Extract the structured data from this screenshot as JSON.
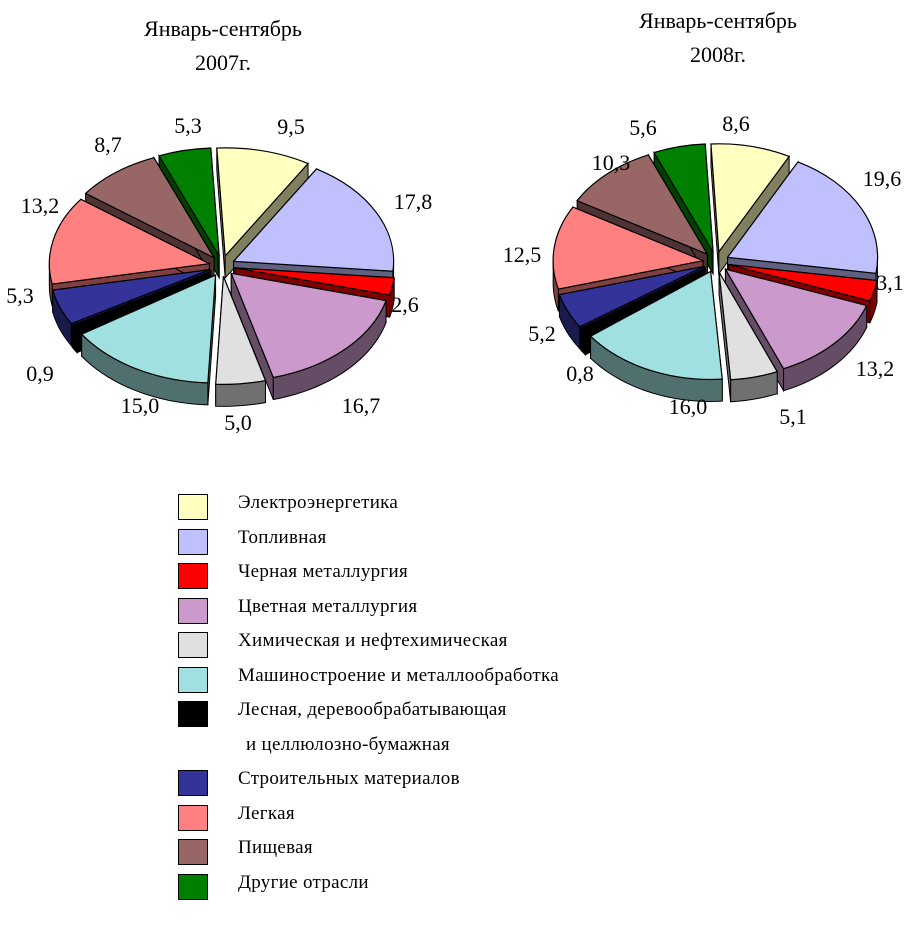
{
  "chart_data": [
    {
      "type": "pie",
      "title_line1": "Январь-сентябрь",
      "title_line2": "2007г.",
      "categories": [
        "Электроэнергетика",
        "Топливная",
        "Черная металлургия",
        "Цветная металлургия",
        "Химическая и нефтехимическая",
        "Машиностроение и металлообработка",
        "Лесная, деревообрабатывающая и целлюлозно-бумажная",
        "Строительных материалов",
        "Легкая",
        "Пищевая",
        "Другие отрасли"
      ],
      "values": [
        9.5,
        17.8,
        2.6,
        16.7,
        5.0,
        15.0,
        0.9,
        5.3,
        13.2,
        8.7,
        5.3
      ],
      "value_labels": [
        "9,5",
        "17,8",
        "2,6",
        "16,7",
        "5,0",
        "15,0",
        "0,9",
        "5,3",
        "13,2",
        "8,7",
        "5,3"
      ]
    },
    {
      "type": "pie",
      "title_line1": "Январь-сентябрь",
      "title_line2": "2008г.",
      "categories": [
        "Электроэнергетика",
        "Топливная",
        "Черная металлургия",
        "Цветная металлургия",
        "Химическая и нефтехимическая",
        "Машиностроение и металлообработка",
        "Лесная, деревообрабатывающая и целлюлозно-бумажная",
        "Строительных материалов",
        "Легкая",
        "Пищевая",
        "Другие отрасли"
      ],
      "values": [
        8.6,
        19.6,
        3.1,
        13.2,
        5.1,
        16.0,
        0.8,
        5.2,
        12.5,
        10.3,
        5.6
      ],
      "value_labels": [
        "8,6",
        "19,6",
        "3,1",
        "13,2",
        "5,1",
        "16,0",
        "0,8",
        "5,2",
        "12,5",
        "10,3",
        "5,6"
      ]
    }
  ],
  "colors": [
    "#ffffc0",
    "#c0c0ff",
    "#ff0000",
    "#cc99cc",
    "#e0e0e0",
    "#a0e0e0",
    "#000000",
    "#333399",
    "#ff8080",
    "#996666",
    "#008000"
  ],
  "legend": [
    {
      "label": "Электроэнергетика"
    },
    {
      "label": "Топливная"
    },
    {
      "label": "Черная металлургия"
    },
    {
      "label": "Цветная металлургия"
    },
    {
      "label": "Химическая и нефтехимическая"
    },
    {
      "label": "Машиностроение и металлообработка"
    },
    {
      "label": "Лесная, деревообрабатывающая",
      "label2": "и целлюлозно-бумажная"
    },
    {
      "label": "Строительных материалов"
    },
    {
      "label": "Легкая"
    },
    {
      "label": "Пищевая"
    },
    {
      "label": "Другие отрасли"
    }
  ]
}
